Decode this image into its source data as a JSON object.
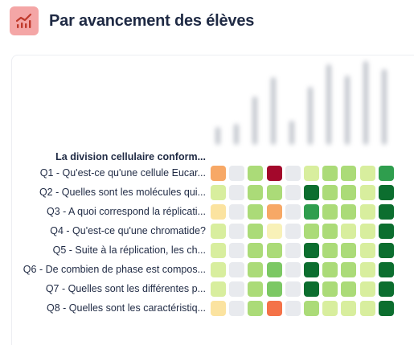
{
  "header": {
    "title": "Par avancement des élèves",
    "icon": "bar-chart-icon",
    "icon_bg": "#f4a6a6",
    "icon_color": "#c0392b"
  },
  "section": {
    "title": "La division cellulaire conform..."
  },
  "status_colors": {
    "na": "#e8eaee",
    "orange": "#f7a866",
    "darkred": "#a3082b",
    "red_orange": "#f47248",
    "pale_yellow": "#fbe3a0",
    "cream": "#f8f1b8",
    "light_yellowgreen": "#d8ee9e",
    "light_green": "#abdb78",
    "mid_green": "#7cc864",
    "green": "#2f9e4e",
    "dark_green": "#0c6e2f"
  },
  "questions": [
    {
      "label": "Q1 - Qu'est-ce qu'une cellule Eucar...",
      "cells": [
        "orange",
        "na",
        "light_green",
        "darkred",
        "na",
        "light_yellowgreen",
        "light_green",
        "light_green",
        "light_yellowgreen",
        "green"
      ]
    },
    {
      "label": "Q2 - Quelles sont les molécules qui...",
      "cells": [
        "light_yellowgreen",
        "na",
        "light_green",
        "light_green",
        "na",
        "dark_green",
        "light_green",
        "light_green",
        "light_yellowgreen",
        "dark_green"
      ]
    },
    {
      "label": "Q3 - A quoi correspond la réplicati...",
      "cells": [
        "pale_yellow",
        "na",
        "light_green",
        "orange",
        "na",
        "green",
        "light_green",
        "light_green",
        "light_yellowgreen",
        "dark_green"
      ]
    },
    {
      "label": "Q4 - Qu'est-ce qu'une chromatide?",
      "cells": [
        "light_yellowgreen",
        "na",
        "light_green",
        "cream",
        "na",
        "light_green",
        "light_green",
        "light_yellowgreen",
        "light_yellowgreen",
        "dark_green"
      ]
    },
    {
      "label": "Q5 - Suite à la réplication, les ch...",
      "cells": [
        "light_yellowgreen",
        "na",
        "light_green",
        "light_green",
        "na",
        "dark_green",
        "light_green",
        "light_green",
        "light_yellowgreen",
        "dark_green"
      ]
    },
    {
      "label": "Q6 - De combien de phase est compos...",
      "cells": [
        "light_yellowgreen",
        "na",
        "light_green",
        "mid_green",
        "na",
        "dark_green",
        "light_green",
        "light_green",
        "light_yellowgreen",
        "dark_green"
      ]
    },
    {
      "label": "Q7 - Quelles sont les différentes p...",
      "cells": [
        "light_yellowgreen",
        "na",
        "light_green",
        "mid_green",
        "na",
        "dark_green",
        "light_green",
        "light_green",
        "light_yellowgreen",
        "dark_green"
      ]
    },
    {
      "label": "Q8 - Quelles sont les caractéristiq...",
      "cells": [
        "pale_yellow",
        "na",
        "light_green",
        "red_orange",
        "na",
        "light_green",
        "light_yellowgreen",
        "light_yellowgreen",
        "light_yellowgreen",
        "dark_green"
      ]
    }
  ]
}
